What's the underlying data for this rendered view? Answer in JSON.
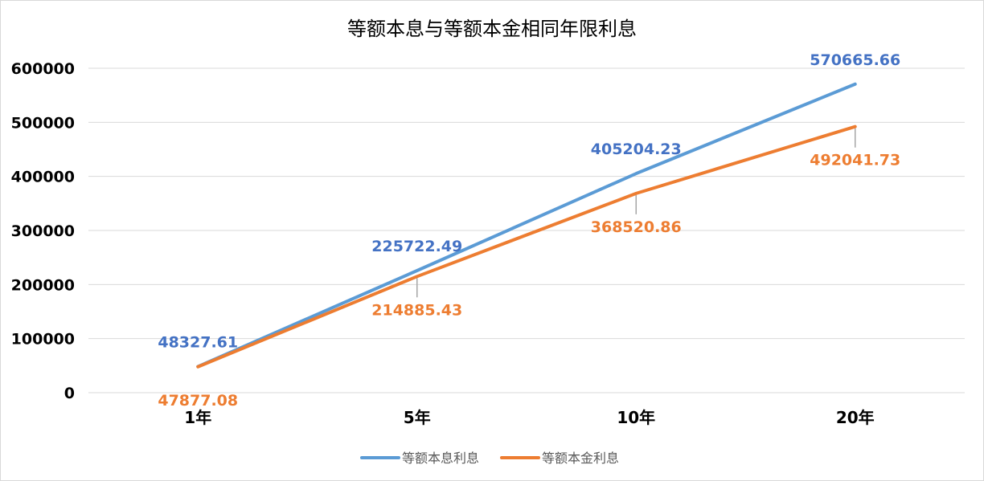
{
  "chart_data": {
    "type": "line",
    "title": "等额本息与等额本金相同年限利息",
    "categories": [
      "1年",
      "5年",
      "10年",
      "20年"
    ],
    "ylim": [
      0,
      600000
    ],
    "yticks": [
      0,
      100000,
      200000,
      300000,
      400000,
      500000,
      600000
    ],
    "grid": true,
    "legend": "bottom",
    "series": [
      {
        "name": "等额本息利息",
        "color": "#5B9BD5",
        "values": [
          48327.61,
          225722.49,
          405204.23,
          570665.66
        ],
        "labels": [
          "48327.61",
          "225722.49",
          "405204.23",
          "570665.66"
        ]
      },
      {
        "name": "等额本金利息",
        "color": "#ED7D31",
        "values": [
          47877.08,
          214885.43,
          368520.86,
          492041.73
        ],
        "labels": [
          "47877.08",
          "214885.43",
          "368520.86",
          "492041.73"
        ]
      }
    ]
  }
}
